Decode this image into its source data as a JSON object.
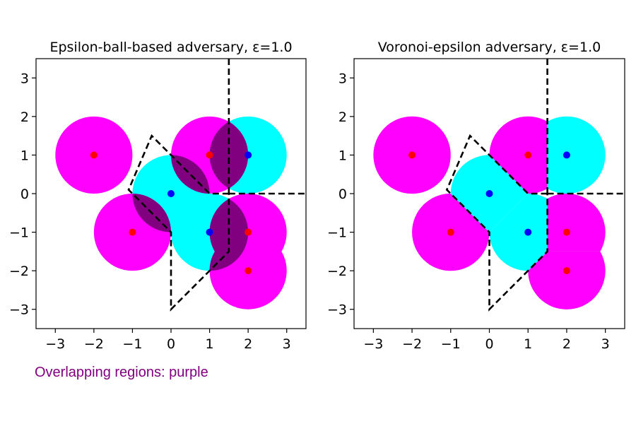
{
  "footnote": "Overlapping regions: purple",
  "colors": {
    "red_class": "#ff00ff",
    "blue_class": "#00ffff",
    "overlap": "#800080",
    "red_point": "#ff0000",
    "blue_point": "#0000ff",
    "boundary": "#000000"
  },
  "chart_data": [
    {
      "type": "scatter",
      "title": "Epsilon-ball-based adversary, ε=1.0",
      "xlabel": "",
      "ylabel": "",
      "xlim": [
        -3.5,
        3.5
      ],
      "ylim": [
        -3.5,
        3.5
      ],
      "xticks": [
        -3,
        -2,
        -1,
        0,
        1,
        2,
        3
      ],
      "yticks": [
        -3,
        -2,
        -1,
        0,
        1,
        2,
        3
      ],
      "grid": false,
      "epsilon": 1.0,
      "region_mode": "ball",
      "red_points": [
        [
          -2,
          1
        ],
        [
          -1,
          -1
        ],
        [
          1,
          1
        ],
        [
          2,
          -1
        ],
        [
          2,
          -2
        ]
      ],
      "blue_points": [
        [
          0,
          0
        ],
        [
          1,
          -1
        ],
        [
          2,
          1
        ]
      ],
      "decision_boundary": [
        [
          [
            1.5,
            3.5
          ],
          [
            1.5,
            0
          ]
        ],
        [
          [
            1.5,
            0
          ],
          [
            3.5,
            0
          ]
        ],
        [
          [
            1.5,
            0
          ],
          [
            1,
            0
          ],
          [
            -0.5,
            1.5
          ],
          [
            -1.1,
            0.1
          ],
          [
            0,
            -1
          ],
          [
            0,
            -3
          ],
          [
            1.5,
            -1.5
          ],
          [
            1.5,
            0
          ]
        ]
      ]
    },
    {
      "type": "scatter",
      "title": "Voronoi-epsilon adversary, ε=1.0",
      "xlabel": "",
      "ylabel": "",
      "xlim": [
        -3.5,
        3.5
      ],
      "ylim": [
        -3.5,
        3.5
      ],
      "xticks": [
        -3,
        -2,
        -1,
        0,
        1,
        2,
        3
      ],
      "yticks": [
        -3,
        -2,
        -1,
        0,
        1,
        2,
        3
      ],
      "grid": false,
      "epsilon": 1.0,
      "region_mode": "voronoi",
      "red_points": [
        [
          -2,
          1
        ],
        [
          -1,
          -1
        ],
        [
          1,
          1
        ],
        [
          2,
          -1
        ],
        [
          2,
          -2
        ]
      ],
      "blue_points": [
        [
          0,
          0
        ],
        [
          1,
          -1
        ],
        [
          2,
          1
        ]
      ],
      "decision_boundary": [
        [
          [
            1.5,
            3.5
          ],
          [
            1.5,
            0
          ]
        ],
        [
          [
            1.5,
            0
          ],
          [
            3.5,
            0
          ]
        ],
        [
          [
            1.5,
            0
          ],
          [
            1,
            0
          ],
          [
            -0.5,
            1.5
          ],
          [
            -1.1,
            0.1
          ],
          [
            0,
            -1
          ],
          [
            0,
            -3
          ],
          [
            1.5,
            -1.5
          ],
          [
            1.5,
            0
          ]
        ]
      ]
    }
  ]
}
